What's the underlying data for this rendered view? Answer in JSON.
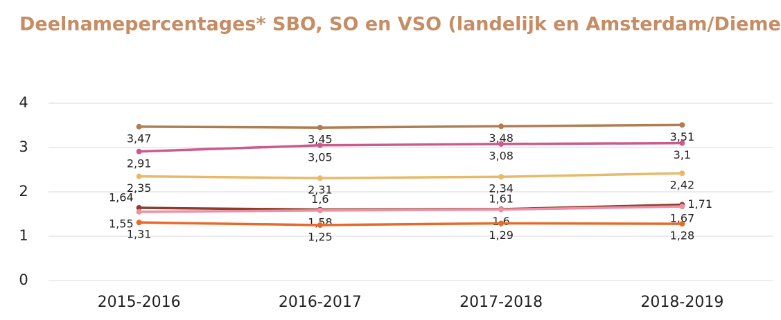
{
  "chart_data": {
    "type": "line",
    "title": "Deelnamepercentages* SBO, SO en VSO (landelijk en Amsterdam/Diemen)",
    "categories": [
      "2015-2016",
      "2016-2017",
      "2017-2018",
      "2018-2019"
    ],
    "series": [
      {
        "color": "#b07d52",
        "values": [
          3.47,
          3.45,
          3.48,
          3.51
        ],
        "value_labels": [
          "3,47",
          "3,45",
          "3,48",
          "3,51"
        ]
      },
      {
        "color": "#cc5a8a",
        "values": [
          2.91,
          3.05,
          3.08,
          3.1
        ],
        "value_labels": [
          "2,91",
          "3,05",
          "3,08",
          "3,1"
        ]
      },
      {
        "color": "#e8b96a",
        "values": [
          2.35,
          2.31,
          2.34,
          2.42
        ],
        "value_labels": [
          "2,35",
          "2,31",
          "2,34",
          "2,42"
        ]
      },
      {
        "color": "#8b3f2a",
        "values": [
          1.64,
          1.6,
          1.61,
          1.71
        ],
        "value_labels": [
          "1,64",
          "1,6",
          "1,61",
          "1,71"
        ]
      },
      {
        "color": "#ee8fa6",
        "values": [
          1.55,
          1.58,
          1.6,
          1.67
        ],
        "value_labels": [
          "1,55",
          "1,58",
          "1,6",
          "1,67"
        ]
      },
      {
        "color": "#e8692a",
        "values": [
          1.31,
          1.25,
          1.29,
          1.28
        ],
        "value_labels": [
          "1,31",
          "1,25",
          "1,29",
          "1,28"
        ]
      }
    ],
    "ylim": [
      0,
      4
    ],
    "yticks": [
      0,
      1,
      2,
      3,
      4
    ],
    "grid": true
  }
}
